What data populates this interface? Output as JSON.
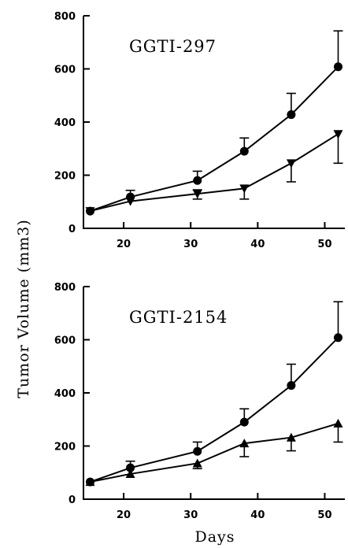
{
  "chart_data": [
    {
      "type": "line",
      "title": "GGTI-297",
      "xlabel": "",
      "ylabel": "Tumor Volume (mm3)",
      "xlim": [
        14,
        53
      ],
      "ylim": [
        0,
        800
      ],
      "xticks": [
        20,
        30,
        40,
        50
      ],
      "yticks": [
        0,
        200,
        400,
        600,
        800
      ],
      "grid": false,
      "series": [
        {
          "marker": "circle",
          "x": [
            15,
            21,
            31,
            38,
            45,
            52
          ],
          "y": [
            65,
            118,
            180,
            290,
            428,
            608
          ],
          "err_upper": [
            0,
            25,
            35,
            50,
            80,
            135
          ],
          "err_lower": [
            0,
            0,
            0,
            0,
            0,
            0
          ]
        },
        {
          "marker": "triangle-down",
          "x": [
            15,
            21,
            31,
            38,
            45,
            52
          ],
          "y": [
            65,
            102,
            130,
            150,
            245,
            355
          ],
          "err_upper": [
            0,
            0,
            15,
            0,
            0,
            0
          ],
          "err_lower": [
            0,
            0,
            20,
            40,
            70,
            110
          ]
        }
      ]
    },
    {
      "type": "line",
      "title": "GGTI-2154",
      "xlabel": "Days",
      "ylabel": "",
      "xlim": [
        14,
        53
      ],
      "ylim": [
        0,
        800
      ],
      "xticks": [
        20,
        30,
        40,
        50
      ],
      "yticks": [
        0,
        200,
        400,
        600,
        800
      ],
      "grid": false,
      "series": [
        {
          "marker": "circle",
          "x": [
            15,
            21,
            31,
            38,
            45,
            52
          ],
          "y": [
            65,
            118,
            180,
            290,
            428,
            608
          ],
          "err_upper": [
            0,
            25,
            35,
            50,
            80,
            135
          ],
          "err_lower": [
            0,
            0,
            0,
            0,
            0,
            0
          ]
        },
        {
          "marker": "triangle-up",
          "x": [
            15,
            21,
            31,
            38,
            45,
            52
          ],
          "y": [
            65,
            95,
            135,
            210,
            232,
            285
          ],
          "err_upper": [
            0,
            0,
            0,
            0,
            0,
            0
          ],
          "err_lower": [
            0,
            0,
            20,
            50,
            50,
            70
          ]
        }
      ]
    }
  ]
}
